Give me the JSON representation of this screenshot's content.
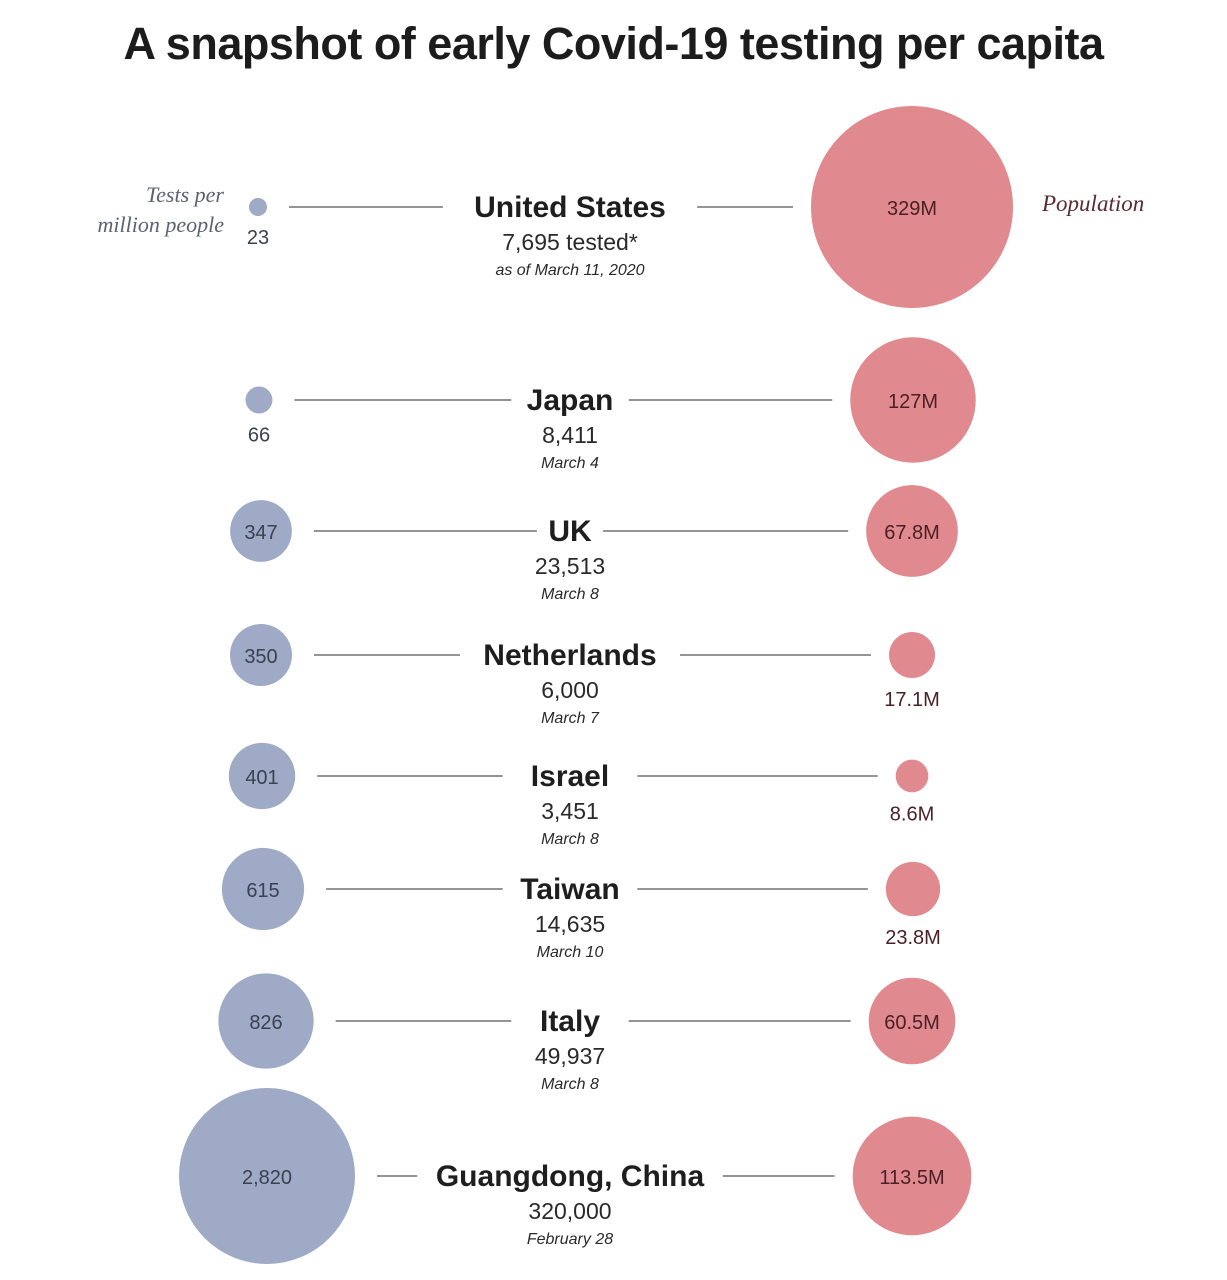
{
  "title": "A snapshot of early Covid-19 testing per capita",
  "legend": {
    "tests_line1": "Tests per",
    "tests_line2": "million people",
    "population": "Population"
  },
  "colors": {
    "tests": "#9eaac6",
    "population": "#e08a90"
  },
  "chart_data": {
    "type": "bubble",
    "title": "A snapshot of early Covid-19 testing per capita",
    "series": [
      {
        "name": "Tests per million people",
        "field": "tests_per_million"
      },
      {
        "name": "Population",
        "field": "population_m"
      }
    ],
    "rows": [
      {
        "country": "United States",
        "tested": "7,695 tested*",
        "date": "as of March 11, 2020",
        "tests_per_million": 23,
        "tests_label": "23",
        "population_m": 329,
        "pop_label": "329M"
      },
      {
        "country": "Japan",
        "tested": "8,411",
        "date": "March 4",
        "tests_per_million": 66,
        "tests_label": "66",
        "population_m": 127,
        "pop_label": "127M"
      },
      {
        "country": "UK",
        "tested": "23,513",
        "date": "March 8",
        "tests_per_million": 347,
        "tests_label": "347",
        "population_m": 67.8,
        "pop_label": "67.8M"
      },
      {
        "country": "Netherlands",
        "tested": "6,000",
        "date": "March 7",
        "tests_per_million": 350,
        "tests_label": "350",
        "population_m": 17.1,
        "pop_label": "17.1M"
      },
      {
        "country": "Israel",
        "tested": "3,451",
        "date": "March 8",
        "tests_per_million": 401,
        "tests_label": "401",
        "population_m": 8.6,
        "pop_label": "8.6M"
      },
      {
        "country": "Taiwan",
        "tested": "14,635",
        "date": "March 10",
        "tests_per_million": 615,
        "tests_label": "615",
        "population_m": 23.8,
        "pop_label": "23.8M"
      },
      {
        "country": "Italy",
        "tested": "49,937",
        "date": "March 8",
        "tests_per_million": 826,
        "tests_label": "826",
        "population_m": 60.5,
        "pop_label": "60.5M"
      },
      {
        "country": "Guangdong, China",
        "tested": "320,000",
        "date": "February 28",
        "tests_per_million": 2820,
        "tests_label": "2,820",
        "population_m": 113.5,
        "pop_label": "113.5M"
      }
    ]
  }
}
